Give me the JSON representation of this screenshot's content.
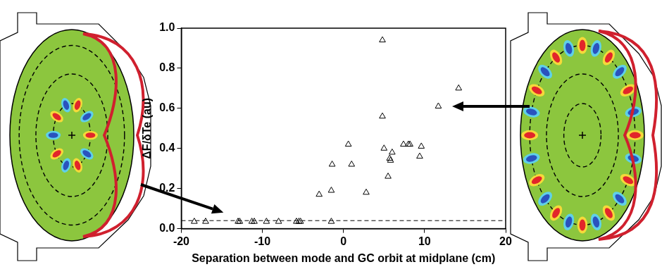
{
  "chart_data": {
    "type": "scatter",
    "x_label": "Separation between mode and GC orbit at midplane (cm)",
    "y_label": "ΔF/δTe (au)",
    "x": [
      -18.4,
      -17.0,
      -13.0,
      -12.8,
      -11.3,
      -11.0,
      -9.5,
      -8.0,
      -5.8,
      -5.5,
      -5.3,
      -1.5,
      -3.0,
      -1.5,
      -1.4,
      0.6,
      1.0,
      2.8,
      4.8,
      5.0,
      4.8,
      5.5,
      5.7,
      5.8,
      6.0,
      7.4,
      8.0,
      8.2,
      9.4,
      9.6,
      11.7,
      14.2
    ],
    "values": [
      0.035,
      0.035,
      0.035,
      0.035,
      0.035,
      0.035,
      0.035,
      0.035,
      0.035,
      0.035,
      0.035,
      0.035,
      0.17,
      0.19,
      0.32,
      0.42,
      0.32,
      0.18,
      0.56,
      0.4,
      0.94,
      0.26,
      0.35,
      0.34,
      0.38,
      0.42,
      0.42,
      0.42,
      0.36,
      0.41,
      0.61,
      0.7
    ],
    "color": "#000000",
    "marker": "triangle",
    "xlim": [
      -20,
      20
    ],
    "xticks": [
      -20,
      -10,
      0,
      10,
      20
    ],
    "ylim": [
      0,
      1
    ],
    "yticks": [
      {
        "value": 0,
        "label": "0.0"
      },
      0.2,
      0.4,
      0.6,
      0.8,
      {
        "value": 1,
        "label": "1.0"
      }
    ],
    "reference_line": {
      "y": 0.04,
      "line_style": "dashed"
    },
    "grid": false
  }
}
